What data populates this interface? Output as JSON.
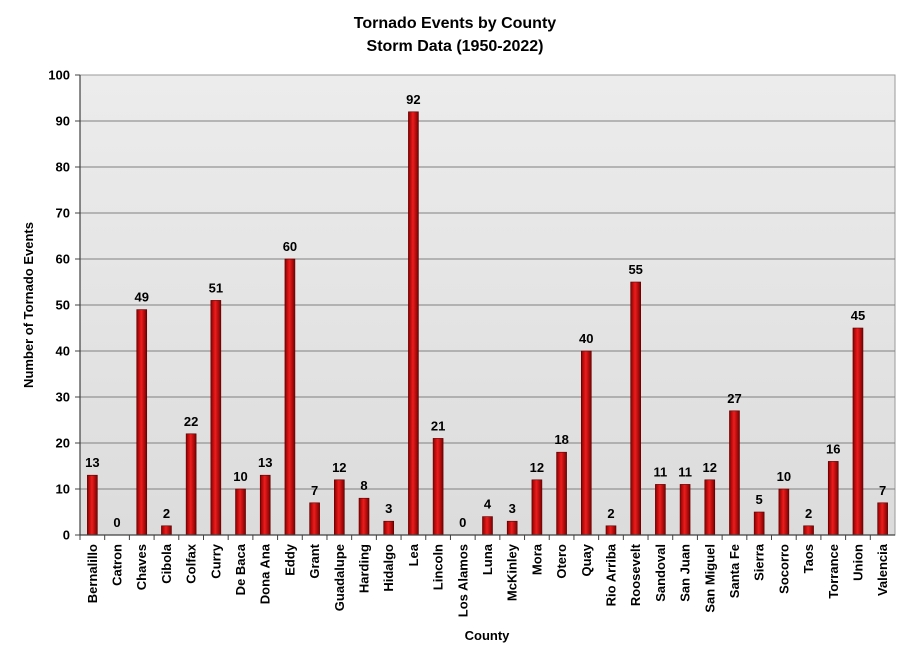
{
  "chart_data": {
    "type": "bar",
    "title": "Tornado Events by County",
    "subtitle": "Storm Data (1950-2022)",
    "xlabel": "County",
    "ylabel": "Number of Tornado Events",
    "ylim": [
      0,
      100
    ],
    "ytick_step": 10,
    "grid": true,
    "legend": "none",
    "bar_color": "#cc0000",
    "plot_background": "#e4e4e4",
    "categories": [
      "Bernalillo",
      "Catron",
      "Chaves",
      "Cibola",
      "Colfax",
      "Curry",
      "De Baca",
      "Dona Ana",
      "Eddy",
      "Grant",
      "Guadalupe",
      "Harding",
      "Hidalgo",
      "Lea",
      "Lincoln",
      "Los Alamos",
      "Luna",
      "McKinley",
      "Mora",
      "Otero",
      "Quay",
      "Rio Arriba",
      "Roosevelt",
      "Sandoval",
      "San Juan",
      "San Miguel",
      "Santa Fe",
      "Sierra",
      "Socorro",
      "Taos",
      "Torrance",
      "Union",
      "Valencia"
    ],
    "values": [
      13,
      0,
      49,
      2,
      22,
      51,
      10,
      13,
      60,
      7,
      12,
      8,
      3,
      92,
      21,
      0,
      4,
      3,
      12,
      18,
      40,
      2,
      55,
      11,
      11,
      12,
      27,
      5,
      10,
      2,
      16,
      45,
      7
    ]
  }
}
